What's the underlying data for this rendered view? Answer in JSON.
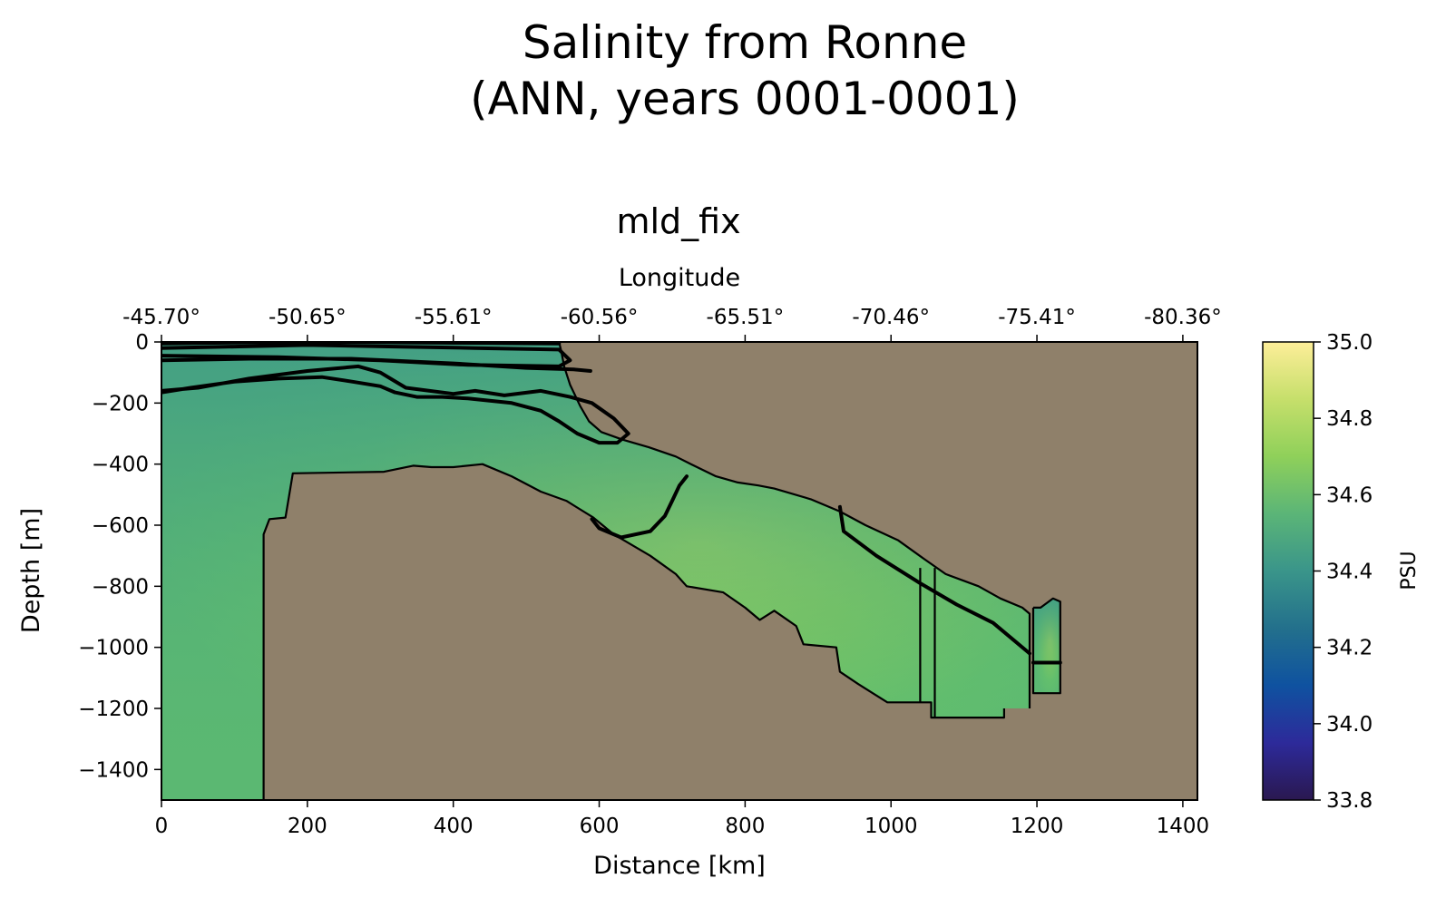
{
  "chart_data": {
    "type": "heatmap",
    "suptitle_lines": [
      "Salinity from Ronne",
      "(ANN, years 0001-0001)"
    ],
    "title": "mld_fix",
    "xlabel": "Distance [km]",
    "ylabel": "Depth [m]",
    "top_xlabel": "Longitude",
    "xlim": [
      0,
      1420
    ],
    "ylim": [
      -1500,
      0
    ],
    "xticks": [
      0,
      200,
      400,
      600,
      800,
      1000,
      1200,
      1400
    ],
    "xtick_labels": [
      "0",
      "200",
      "400",
      "600",
      "800",
      "1000",
      "1200",
      "1400"
    ],
    "yticks": [
      0,
      -200,
      -400,
      -600,
      -800,
      -1000,
      -1200,
      -1400
    ],
    "ytick_labels": [
      "0",
      "−200",
      "−400",
      "−600",
      "−800",
      "−1000",
      "−1200",
      "−1400"
    ],
    "top_xticks": [
      0,
      200,
      400,
      600,
      800,
      1000,
      1200,
      1400
    ],
    "top_xtick_labels": [
      "-45.70°",
      "-50.65°",
      "-55.61°",
      "-60.56°",
      "-65.51°",
      "-70.46°",
      "-75.41°",
      "-80.36°"
    ],
    "colorbar": {
      "label": "PSU",
      "vmin": 33.8,
      "vmax": 35.0,
      "ticks": [
        33.8,
        34.0,
        34.2,
        34.4,
        34.6,
        34.8,
        35.0
      ],
      "tick_labels": [
        "33.8",
        "34.0",
        "34.2",
        "34.4",
        "34.6",
        "34.8",
        "35.0"
      ],
      "colormap": "haline",
      "stops": [
        "#2a1850",
        "#2d2a9a",
        "#0f52a0",
        "#23708c",
        "#3a958a",
        "#5bb577",
        "#8fd05a",
        "#c6df6b",
        "#fdee99"
      ]
    },
    "land_color": "#8f806a",
    "contour_color": "#000000",
    "ocean_regions": [
      [
        [
          0,
          0
        ],
        [
          545,
          0
        ],
        [
          548,
          -30
        ],
        [
          552,
          -80
        ],
        [
          560,
          -140
        ],
        [
          574,
          -210
        ],
        [
          586,
          -260
        ],
        [
          603,
          -295
        ],
        [
          632,
          -320
        ],
        [
          668,
          -345
        ],
        [
          705,
          -375
        ],
        [
          730,
          -405
        ],
        [
          760,
          -440
        ],
        [
          790,
          -460
        ],
        [
          818,
          -470
        ],
        [
          840,
          -480
        ],
        [
          890,
          -515
        ],
        [
          930,
          -555
        ],
        [
          965,
          -600
        ],
        [
          1010,
          -650
        ],
        [
          1045,
          -710
        ],
        [
          1075,
          -760
        ],
        [
          1120,
          -800
        ],
        [
          1150,
          -840
        ],
        [
          1180,
          -870
        ],
        [
          1190,
          -890
        ],
        [
          1190,
          -1200
        ],
        [
          1155,
          -1200
        ],
        [
          1155,
          -1230
        ],
        [
          1055,
          -1230
        ],
        [
          1055,
          -1180
        ],
        [
          995,
          -1180
        ],
        [
          955,
          -1120
        ],
        [
          930,
          -1080
        ],
        [
          925,
          -1000
        ],
        [
          880,
          -990
        ],
        [
          870,
          -930
        ],
        [
          840,
          -880
        ],
        [
          820,
          -910
        ],
        [
          800,
          -870
        ],
        [
          770,
          -820
        ],
        [
          720,
          -800
        ],
        [
          705,
          -760
        ],
        [
          670,
          -700
        ],
        [
          620,
          -630
        ],
        [
          592,
          -575
        ],
        [
          555,
          -520
        ],
        [
          520,
          -490
        ],
        [
          480,
          -440
        ],
        [
          440,
          -400
        ],
        [
          400,
          -410
        ],
        [
          370,
          -410
        ],
        [
          345,
          -405
        ],
        [
          305,
          -425
        ],
        [
          180,
          -430
        ],
        [
          170,
          -575
        ],
        [
          148,
          -580
        ],
        [
          140,
          -630
        ],
        [
          140,
          -1500
        ],
        [
          0,
          -1500
        ]
      ],
      [
        [
          1195,
          -870
        ],
        [
          1205,
          -870
        ],
        [
          1222,
          -840
        ],
        [
          1232,
          -850
        ],
        [
          1232,
          -1150
        ],
        [
          1195,
          -1150
        ]
      ]
    ],
    "contours": [
      [
        [
          0,
          -5
        ],
        [
          100,
          -2
        ],
        [
          250,
          0
        ],
        [
          400,
          -3
        ],
        [
          545,
          -5
        ]
      ],
      [
        [
          0,
          -20
        ],
        [
          100,
          -15
        ],
        [
          200,
          -10
        ],
        [
          320,
          -15
        ],
        [
          430,
          -20
        ],
        [
          545,
          -25
        ],
        [
          560,
          -60
        ],
        [
          545,
          -80
        ],
        [
          420,
          -75
        ],
        [
          300,
          -60
        ],
        [
          160,
          -50
        ],
        [
          0,
          -45
        ]
      ],
      [
        [
          0,
          -60
        ],
        [
          120,
          -55
        ],
        [
          260,
          -55
        ],
        [
          400,
          -70
        ],
        [
          500,
          -85
        ],
        [
          565,
          -90
        ],
        [
          588,
          -95
        ]
      ],
      [
        [
          0,
          -160
        ],
        [
          50,
          -150
        ],
        [
          120,
          -120
        ],
        [
          200,
          -95
        ],
        [
          270,
          -80
        ],
        [
          300,
          -100
        ],
        [
          335,
          -150
        ],
        [
          400,
          -170
        ],
        [
          430,
          -160
        ],
        [
          470,
          -175
        ],
        [
          520,
          -160
        ],
        [
          560,
          -180
        ],
        [
          590,
          -200
        ],
        [
          620,
          -250
        ],
        [
          640,
          -300
        ],
        [
          625,
          -330
        ],
        [
          600,
          -330
        ],
        [
          570,
          -300
        ],
        [
          545,
          -260
        ],
        [
          520,
          -225
        ],
        [
          480,
          -200
        ],
        [
          420,
          -185
        ],
        [
          385,
          -180
        ],
        [
          350,
          -180
        ],
        [
          320,
          -165
        ],
        [
          300,
          -145
        ],
        [
          262,
          -130
        ],
        [
          220,
          -115
        ],
        [
          160,
          -120
        ],
        [
          100,
          -130
        ],
        [
          40,
          -150
        ],
        [
          0,
          -165
        ]
      ],
      [
        [
          720,
          -440
        ],
        [
          710,
          -470
        ],
        [
          700,
          -520
        ],
        [
          690,
          -570
        ],
        [
          670,
          -620
        ],
        [
          630,
          -640
        ],
        [
          600,
          -610
        ],
        [
          590,
          -580
        ]
      ],
      [
        [
          930,
          -540
        ],
        [
          935,
          -620
        ],
        [
          980,
          -700
        ],
        [
          1040,
          -790
        ],
        [
          1090,
          -860
        ],
        [
          1140,
          -920
        ],
        [
          1190,
          -1020
        ]
      ],
      [
        [
          1195,
          -1050
        ],
        [
          1232,
          -1050
        ]
      ]
    ],
    "land_outline": [
      [
        [
          545,
          0
        ],
        [
          548,
          -30
        ],
        [
          552,
          -80
        ],
        [
          560,
          -140
        ],
        [
          574,
          -210
        ],
        [
          586,
          -260
        ],
        [
          603,
          -295
        ],
        [
          632,
          -320
        ],
        [
          668,
          -345
        ],
        [
          705,
          -375
        ],
        [
          730,
          -405
        ],
        [
          760,
          -440
        ],
        [
          790,
          -460
        ],
        [
          818,
          -470
        ],
        [
          840,
          -480
        ],
        [
          890,
          -515
        ],
        [
          930,
          -555
        ],
        [
          965,
          -600
        ],
        [
          1010,
          -650
        ],
        [
          1045,
          -710
        ],
        [
          1075,
          -760
        ],
        [
          1120,
          -800
        ],
        [
          1150,
          -840
        ],
        [
          1180,
          -870
        ],
        [
          1190,
          -890
        ],
        [
          1190,
          -1200
        ]
      ],
      [
        [
          1155,
          -1200
        ],
        [
          1155,
          -1230
        ],
        [
          1055,
          -1230
        ],
        [
          1055,
          -1180
        ],
        [
          995,
          -1180
        ],
        [
          955,
          -1120
        ],
        [
          930,
          -1080
        ],
        [
          925,
          -1000
        ],
        [
          880,
          -990
        ],
        [
          870,
          -930
        ],
        [
          840,
          -880
        ],
        [
          820,
          -910
        ],
        [
          800,
          -870
        ],
        [
          770,
          -820
        ],
        [
          720,
          -800
        ],
        [
          705,
          -760
        ],
        [
          670,
          -700
        ],
        [
          620,
          -630
        ],
        [
          592,
          -575
        ],
        [
          555,
          -520
        ],
        [
          520,
          -490
        ],
        [
          480,
          -440
        ],
        [
          440,
          -400
        ],
        [
          400,
          -410
        ],
        [
          370,
          -410
        ],
        [
          345,
          -405
        ],
        [
          305,
          -425
        ],
        [
          180,
          -430
        ],
        [
          170,
          -575
        ],
        [
          148,
          -580
        ],
        [
          140,
          -630
        ],
        [
          140,
          -1500
        ]
      ],
      [
        [
          1040,
          -740
        ],
        [
          1040,
          -1180
        ]
      ],
      [
        [
          1060,
          -740
        ],
        [
          1060,
          -1230
        ]
      ],
      [
        [
          1195,
          -870
        ],
        [
          1205,
          -870
        ],
        [
          1222,
          -840
        ],
        [
          1232,
          -850
        ],
        [
          1232,
          -1150
        ],
        [
          1195,
          -1150
        ],
        [
          1195,
          -870
        ]
      ]
    ]
  }
}
